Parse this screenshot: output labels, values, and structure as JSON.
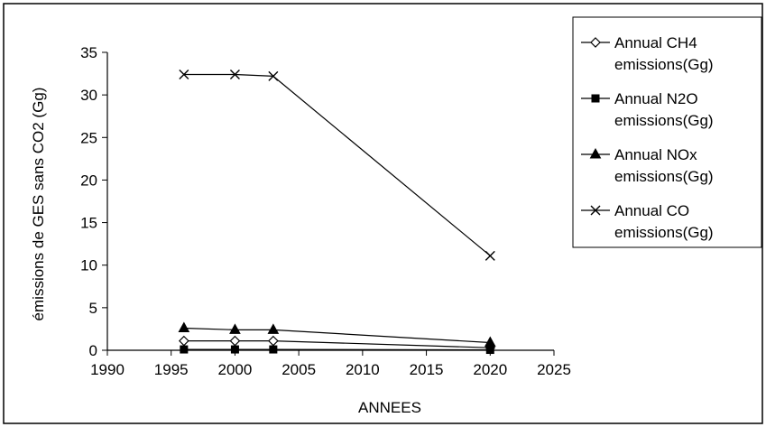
{
  "chart_data": {
    "type": "line",
    "title": "",
    "xlabel": "ANNEES",
    "ylabel": "émissions de GES sans CO2 (Gg)",
    "xlim": [
      1990,
      2025
    ],
    "ylim": [
      0,
      35
    ],
    "x_ticks": [
      1990,
      1995,
      2000,
      2005,
      2010,
      2015,
      2020,
      2025
    ],
    "y_ticks": [
      0,
      5,
      10,
      15,
      20,
      25,
      30,
      35
    ],
    "grid": false,
    "legend_position": "right",
    "x": [
      1996,
      2000,
      2003,
      2020
    ],
    "series": [
      {
        "name": "Annual CH4 emissions(Gg)",
        "marker": "diamond-open",
        "values": [
          1.1,
          1.1,
          1.1,
          0.3
        ]
      },
      {
        "name": "Annual N2O emissions(Gg)",
        "marker": "square-filled",
        "values": [
          0.1,
          0.1,
          0.1,
          0.05
        ]
      },
      {
        "name": "Annual NOx emissions(Gg)",
        "marker": "triangle-filled",
        "values": [
          2.6,
          2.4,
          2.4,
          0.9
        ]
      },
      {
        "name": "Annual CO emissions(Gg)",
        "marker": "x",
        "values": [
          32.4,
          32.4,
          32.2,
          11.1
        ]
      }
    ]
  },
  "legend": {
    "items": [
      {
        "line1": "Annual CH4",
        "line2": "emissions(Gg)"
      },
      {
        "line1": "Annual N2O",
        "line2": "emissions(Gg)"
      },
      {
        "line1": "Annual NOx",
        "line2": "emissions(Gg)"
      },
      {
        "line1": "Annual CO",
        "line2": "emissions(Gg)"
      }
    ]
  },
  "colors": {
    "line": "#000000",
    "background": "#ffffff"
  }
}
